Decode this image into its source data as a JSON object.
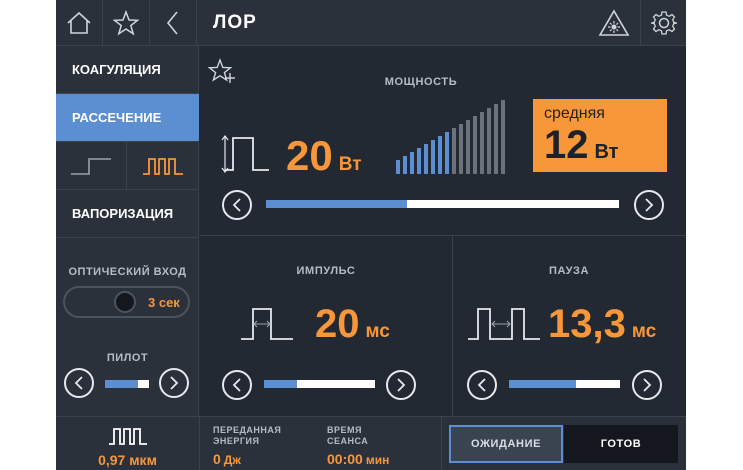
{
  "header": {
    "title": "ЛОР"
  },
  "sidebar": {
    "modes": [
      {
        "label": "КОАГУЛЯЦИЯ",
        "active": false
      },
      {
        "label": "РАССЕЧЕНИЕ",
        "active": true
      },
      {
        "label": "ВАПОРИЗАЦИЯ",
        "active": false
      }
    ],
    "waveforms": {
      "continuous": "continuous-wave-icon",
      "pulsed": "pulsed-wave-icon",
      "selected": "pulsed"
    },
    "optical_input": {
      "label": "ОПТИЧЕСКИЙ ВХОД",
      "value": "3 сек"
    },
    "pilot": {
      "label": "ПИЛОТ",
      "level": 0.75
    }
  },
  "power": {
    "label": "МОЩНОСТЬ",
    "value": "20",
    "unit": "Вт",
    "bars_total": 16,
    "bars_active": 8,
    "slider_fraction": 0.4,
    "average": {
      "label": "средняя",
      "value": "12",
      "unit": "Вт"
    }
  },
  "pulse": {
    "label": "ИМПУЛЬС",
    "value": "20",
    "unit": "мс",
    "slider_fraction": 0.3
  },
  "pause": {
    "label": "ПАУЗА",
    "value": "13,3",
    "unit": "мс",
    "slider_fraction": 0.6
  },
  "footer": {
    "wavelength": "0,97 мкм",
    "energy": {
      "label_line1": "ПЕРЕДАННАЯ",
      "label_line2": "ЭНЕРГИЯ",
      "value": "0",
      "unit": "Дж"
    },
    "session": {
      "label_line1": "ВРЕМЯ",
      "label_line2": "СЕАНСА",
      "value": "00:00",
      "unit": "мин"
    },
    "standby_label": "ОЖИДАНИЕ",
    "ready_label": "ГОТОВ"
  },
  "colors": {
    "accent": "#f8973a",
    "selected": "#5b8fd1",
    "background": "#222933",
    "panel": "#2b313b"
  }
}
